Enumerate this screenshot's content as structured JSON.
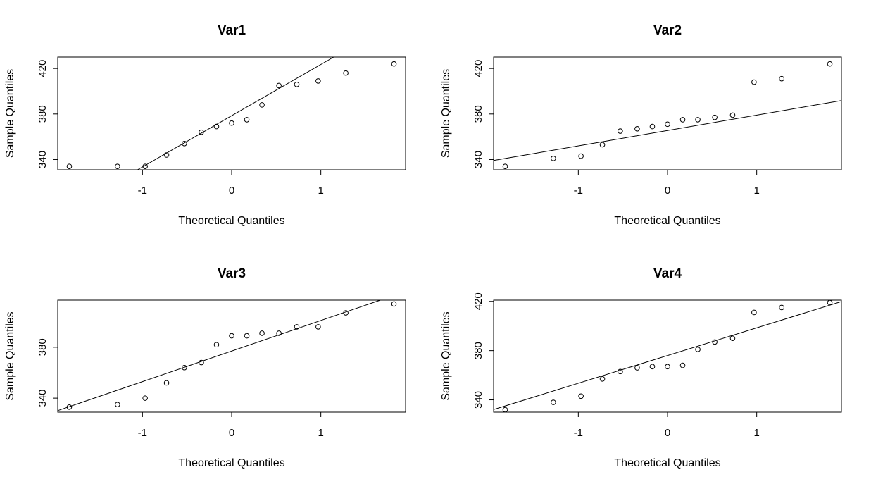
{
  "chart_data": [
    {
      "type": "scatter",
      "title": "Var1",
      "xlabel": "Theoretical Quantiles",
      "ylabel": "Sample Quantiles",
      "xlim": [
        -1.95,
        1.95
      ],
      "ylim": [
        331,
        430
      ],
      "xticks": [
        -1,
        0,
        1
      ],
      "yticks": [
        340,
        380,
        420
      ],
      "points": [
        {
          "x": -1.82,
          "y": 334
        },
        {
          "x": -1.28,
          "y": 334
        },
        {
          "x": -0.97,
          "y": 334
        },
        {
          "x": -0.73,
          "y": 344
        },
        {
          "x": -0.53,
          "y": 354
        },
        {
          "x": -0.34,
          "y": 364
        },
        {
          "x": -0.17,
          "y": 369
        },
        {
          "x": 0.0,
          "y": 372
        },
        {
          "x": 0.17,
          "y": 375
        },
        {
          "x": 0.34,
          "y": 388
        },
        {
          "x": 0.53,
          "y": 405
        },
        {
          "x": 0.73,
          "y": 406
        },
        {
          "x": 0.97,
          "y": 409
        },
        {
          "x": 1.28,
          "y": 416
        },
        {
          "x": 1.82,
          "y": 424
        }
      ],
      "ref_line": {
        "intercept": 378.5,
        "slope": 45
      }
    },
    {
      "type": "scatter",
      "title": "Var2",
      "xlabel": "Theoretical Quantiles",
      "ylabel": "Sample Quantiles",
      "xlim": [
        -1.95,
        1.95
      ],
      "ylim": [
        331,
        430
      ],
      "xticks": [
        -1,
        0,
        1
      ],
      "yticks": [
        340,
        380,
        420
      ],
      "points": [
        {
          "x": -1.82,
          "y": 334
        },
        {
          "x": -1.28,
          "y": 341
        },
        {
          "x": -0.97,
          "y": 343
        },
        {
          "x": -0.73,
          "y": 353
        },
        {
          "x": -0.53,
          "y": 365
        },
        {
          "x": -0.34,
          "y": 367
        },
        {
          "x": -0.17,
          "y": 369
        },
        {
          "x": 0.0,
          "y": 371
        },
        {
          "x": 0.17,
          "y": 375
        },
        {
          "x": 0.34,
          "y": 375
        },
        {
          "x": 0.53,
          "y": 377
        },
        {
          "x": 0.73,
          "y": 379
        },
        {
          "x": 0.97,
          "y": 408
        },
        {
          "x": 1.28,
          "y": 411
        },
        {
          "x": 1.82,
          "y": 424
        }
      ],
      "ref_line": {
        "intercept": 365.5,
        "slope": 13.5
      }
    },
    {
      "type": "scatter",
      "title": "Var3",
      "xlabel": "Theoretical Quantiles",
      "ylabel": "Sample Quantiles",
      "xlim": [
        -1.95,
        1.95
      ],
      "ylim": [
        329,
        417
      ],
      "xticks": [
        -1,
        0,
        1
      ],
      "yticks": [
        340,
        380
      ],
      "points": [
        {
          "x": -1.82,
          "y": 333
        },
        {
          "x": -1.28,
          "y": 335
        },
        {
          "x": -0.97,
          "y": 340
        },
        {
          "x": -0.73,
          "y": 352
        },
        {
          "x": -0.53,
          "y": 364
        },
        {
          "x": -0.34,
          "y": 368
        },
        {
          "x": -0.17,
          "y": 382
        },
        {
          "x": 0.0,
          "y": 389
        },
        {
          "x": 0.17,
          "y": 389
        },
        {
          "x": 0.34,
          "y": 391
        },
        {
          "x": 0.53,
          "y": 391
        },
        {
          "x": 0.73,
          "y": 396
        },
        {
          "x": 0.97,
          "y": 396
        },
        {
          "x": 1.28,
          "y": 407
        },
        {
          "x": 1.82,
          "y": 414
        }
      ],
      "ref_line": {
        "intercept": 377,
        "slope": 24
      }
    },
    {
      "type": "scatter",
      "title": "Var4",
      "xlabel": "Theoretical Quantiles",
      "ylabel": "Sample Quantiles",
      "xlim": [
        -1.95,
        1.95
      ],
      "ylim": [
        330,
        421
      ],
      "xticks": [
        -1,
        0,
        1
      ],
      "yticks": [
        340,
        380,
        420
      ],
      "points": [
        {
          "x": -1.82,
          "y": 332
        },
        {
          "x": -1.28,
          "y": 338
        },
        {
          "x": -0.97,
          "y": 343
        },
        {
          "x": -0.73,
          "y": 357
        },
        {
          "x": -0.53,
          "y": 363
        },
        {
          "x": -0.34,
          "y": 366
        },
        {
          "x": -0.17,
          "y": 367
        },
        {
          "x": 0.0,
          "y": 367
        },
        {
          "x": 0.17,
          "y": 368
        },
        {
          "x": 0.34,
          "y": 381
        },
        {
          "x": 0.53,
          "y": 387
        },
        {
          "x": 0.73,
          "y": 390
        },
        {
          "x": 0.97,
          "y": 411
        },
        {
          "x": 1.28,
          "y": 415
        },
        {
          "x": 1.82,
          "y": 419
        }
      ],
      "ref_line": {
        "intercept": 376,
        "slope": 22.5
      }
    }
  ]
}
